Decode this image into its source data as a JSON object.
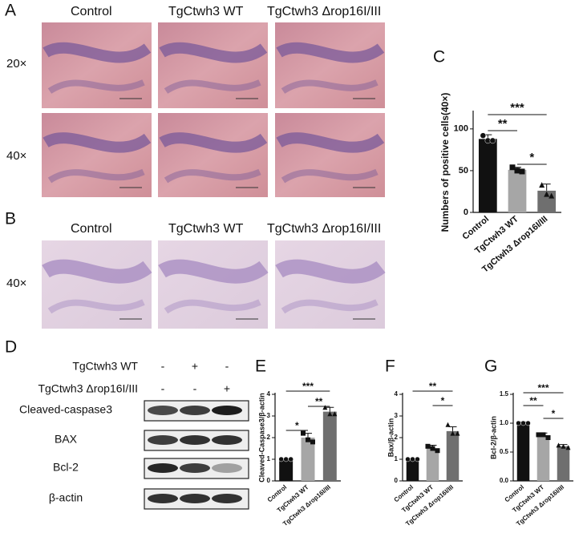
{
  "panel_labels": [
    "A",
    "B",
    "C",
    "D",
    "E",
    "F",
    "G"
  ],
  "histology": {
    "columns": [
      "Control",
      "TgCtwh3 WT",
      "TgCtwh3 Δrop16I/III"
    ],
    "rows_a": [
      "20×",
      "40×"
    ],
    "rows_b": [
      "40×"
    ]
  },
  "western_blot": {
    "conditions": [
      {
        "name": "TgCtwh3 WT",
        "signs": [
          "-",
          "+",
          "-"
        ]
      },
      {
        "name": "TgCtwh3 Δrop16I/III",
        "signs": [
          "-",
          "-",
          "+"
        ]
      }
    ],
    "proteins": [
      "Cleaved-caspase3",
      "BAX",
      "Bcl-2",
      "β-actin"
    ]
  },
  "chart_data": [
    {
      "type": "bar",
      "ylabel": "Numbers of positive cells(40×)",
      "categories": [
        "Control",
        "TgCtwh3 WT",
        "TgCtwh3 Δrop16I/III"
      ],
      "values": [
        88,
        51,
        26
      ],
      "errors": [
        5,
        3,
        8
      ],
      "points": [
        [
          92,
          86,
          86
        ],
        [
          54,
          50,
          49
        ],
        [
          33,
          22,
          20
        ]
      ],
      "colors": [
        "#111111",
        "#a6a6a6",
        "#6f6f6f"
      ],
      "ylim": [
        0,
        120
      ],
      "yticks": [
        0,
        50,
        100
      ],
      "significance": [
        "**",
        "***",
        "*"
      ]
    },
    {
      "type": "bar",
      "ylabel": "Cleaved-Caspase3/β-actin",
      "categories": [
        "Control",
        "TgCtwh3 WT",
        "TgCtwh3 Δrop16I/III"
      ],
      "values": [
        1.0,
        2.0,
        3.2
      ],
      "errors": [
        0,
        0.2,
        0.2
      ],
      "points": [
        [
          1.0,
          1.0,
          1.0
        ],
        [
          2.2,
          1.9,
          1.8
        ],
        [
          3.4,
          3.1,
          3.1
        ]
      ],
      "colors": [
        "#111111",
        "#a6a6a6",
        "#6f6f6f"
      ],
      "ylim": [
        0,
        4
      ],
      "yticks": [
        0,
        1,
        2,
        3,
        4
      ],
      "significance": [
        "*",
        "***",
        "**"
      ]
    },
    {
      "type": "bar",
      "ylabel": "Bax/β-actin",
      "categories": [
        "Control",
        "TgCtwh3 WT",
        "TgCtwh3 Δrop16I/III"
      ],
      "values": [
        1.0,
        1.5,
        2.3
      ],
      "errors": [
        0,
        0.15,
        0.2
      ],
      "points": [
        [
          1.0,
          1.0,
          1.0
        ],
        [
          1.6,
          1.5,
          1.4
        ],
        [
          2.6,
          2.2,
          2.2
        ]
      ],
      "colors": [
        "#111111",
        "#a6a6a6",
        "#6f6f6f"
      ],
      "ylim": [
        0,
        4
      ],
      "yticks": [
        0,
        1,
        2,
        3,
        4
      ],
      "significance": [
        "**",
        "*"
      ]
    },
    {
      "type": "bar",
      "ylabel": "Bcl-2/β-actin",
      "categories": [
        "Control",
        "TgCtwh3 WT",
        "TgCtwh3 Δrop16I/III"
      ],
      "values": [
        1.0,
        0.78,
        0.6
      ],
      "errors": [
        0.02,
        0.05,
        0.03
      ],
      "points": [
        [
          1.0,
          1.0,
          1.0
        ],
        [
          0.8,
          0.8,
          0.75
        ],
        [
          0.62,
          0.6,
          0.58
        ]
      ],
      "colors": [
        "#111111",
        "#a6a6a6",
        "#6f6f6f"
      ],
      "ylim": [
        0,
        1.5
      ],
      "yticks": [
        {
          "value": 0,
          "label": "0.0"
        },
        0.5,
        {
          "value": 1,
          "label": "1.0"
        },
        1.5
      ],
      "significance": [
        "**",
        "***",
        "*"
      ]
    }
  ]
}
